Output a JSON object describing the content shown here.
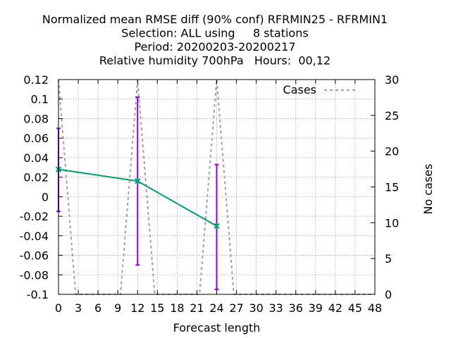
{
  "chart_data": {
    "type": "line",
    "title": [
      "Normalized mean RMSE diff (90% conf) RFRMIN25 - RFRMIN1",
      "Selection: ALL using     8 stations",
      "Period: 20200203-20200217",
      "Relative humidity 700hPa   Hours:  00,12"
    ],
    "xlabel": "Forecast length",
    "ylabel": "",
    "y2label": "No cases",
    "xlim": [
      0,
      48
    ],
    "ylim": [
      -0.1,
      0.12
    ],
    "y2lim": [
      0,
      30
    ],
    "xticks": [
      0,
      3,
      6,
      9,
      12,
      15,
      18,
      21,
      24,
      27,
      30,
      33,
      36,
      39,
      42,
      45,
      48
    ],
    "yticks": [
      -0.1,
      -0.08,
      -0.06,
      -0.04,
      -0.02,
      0,
      0.02,
      0.04,
      0.06,
      0.08,
      0.1,
      0.12
    ],
    "ytick_labels": [
      "-0.1",
      "-0.08",
      "-0.06",
      "-0.04",
      "-0.02",
      "0",
      "0.02",
      "0.04",
      "0.06",
      "0.08",
      "0.1",
      "0.12"
    ],
    "y2ticks": [
      0,
      5,
      10,
      15,
      20,
      25,
      30
    ],
    "grid": true,
    "legend_position": "top-right",
    "series": [
      {
        "name": "",
        "kind": "line-with-errorbars",
        "color": "#009e73",
        "errorbar_color": "#9400d3",
        "x": [
          0,
          12,
          24
        ],
        "y": [
          0.028,
          0.016,
          -0.03
        ],
        "err_low": [
          -0.015,
          -0.07,
          -0.095
        ],
        "err_high": [
          0.07,
          0.102,
          0.033
        ]
      },
      {
        "name": "Cases",
        "kind": "dashed-line",
        "axis": "right",
        "color": "#a0a0a0",
        "x": [
          0,
          2.6,
          9.4,
          12,
          14.6,
          21.4,
          24,
          26.6,
          48
        ],
        "y": [
          30,
          0,
          0,
          30,
          0,
          0,
          30,
          0,
          0
        ]
      }
    ]
  }
}
